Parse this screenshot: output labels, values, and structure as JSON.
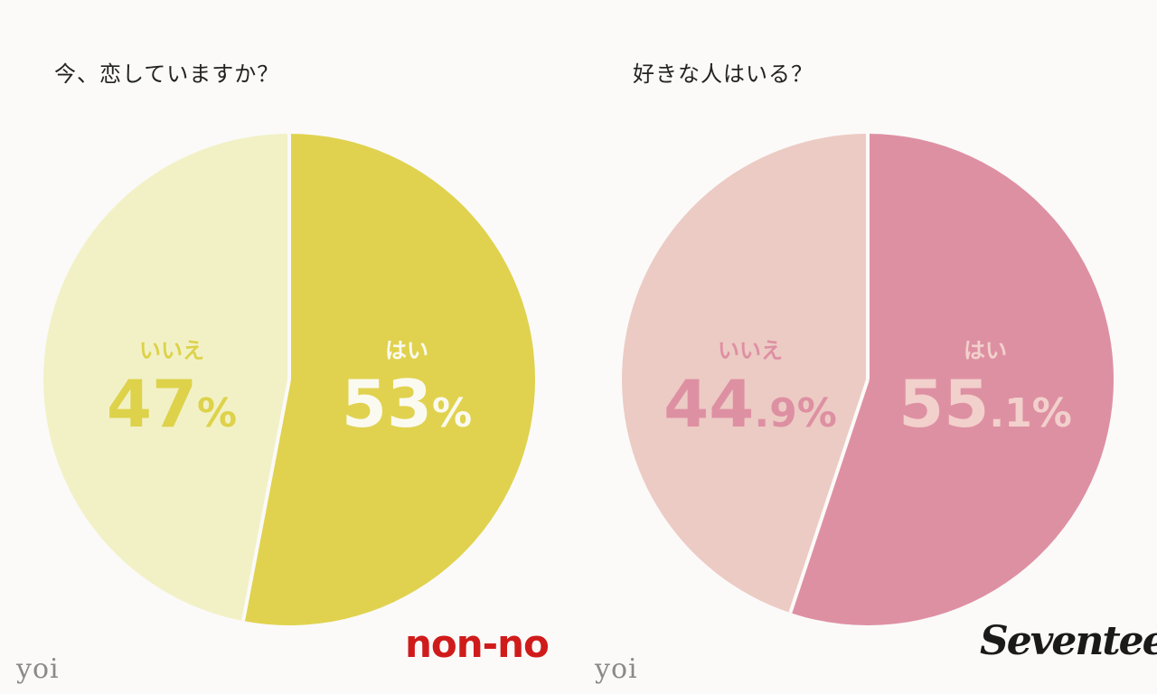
{
  "chart_data": [
    {
      "type": "pie",
      "title": "今、恋していますか？",
      "slices": [
        {
          "label": "はい",
          "value": 53,
          "display": "53",
          "unit": "%",
          "color": "#e0d24e",
          "label_color": "#fbfaf0"
        },
        {
          "label": "いいえ",
          "value": 47,
          "display": "47",
          "unit": "%",
          "color": "#f2f1c6",
          "label_color": "#ddd24a"
        }
      ],
      "logo": "non-no",
      "watermark": "yoi"
    },
    {
      "type": "pie",
      "title": "好きな人はいる？",
      "slices": [
        {
          "label": "はい",
          "value": 55.1,
          "display": "55",
          "decimal": ".1",
          "unit": "%",
          "color": "#de90a3",
          "label_color": "#f2d0cc"
        },
        {
          "label": "いいえ",
          "value": 44.9,
          "display": "44",
          "decimal": ".9",
          "unit": "%",
          "color": "#eccbc4",
          "label_color": "#de90a3"
        }
      ],
      "logo": "Seventeen",
      "watermark": "yoi"
    }
  ]
}
